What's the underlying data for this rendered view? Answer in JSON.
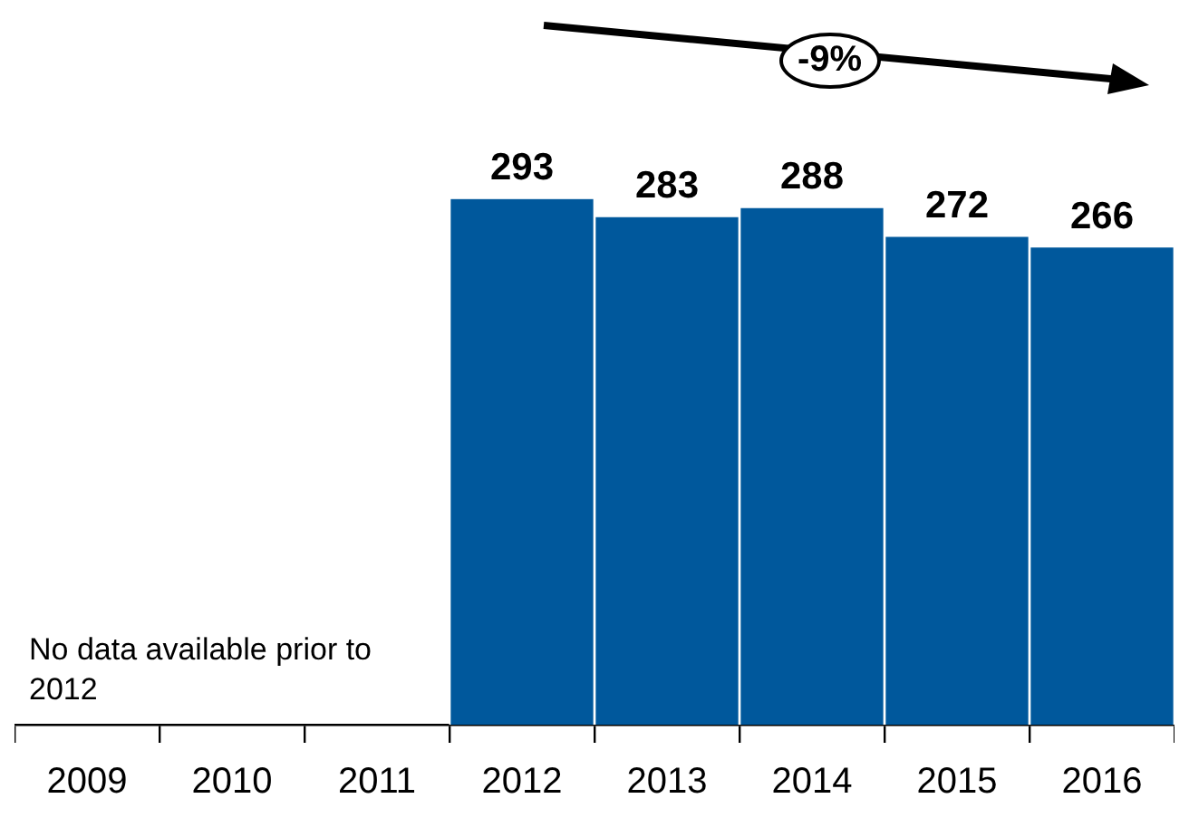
{
  "chart_data": {
    "type": "bar",
    "categories": [
      "2009",
      "2010",
      "2011",
      "2012",
      "2013",
      "2014",
      "2015",
      "2016"
    ],
    "values": [
      null,
      null,
      null,
      293,
      283,
      288,
      272,
      266
    ],
    "color": "#00589c",
    "data_labels": true,
    "legend": false,
    "grid": false,
    "tick_labels": "x",
    "annotations": [
      "-9%",
      "No data available prior to 2012"
    ]
  }
}
